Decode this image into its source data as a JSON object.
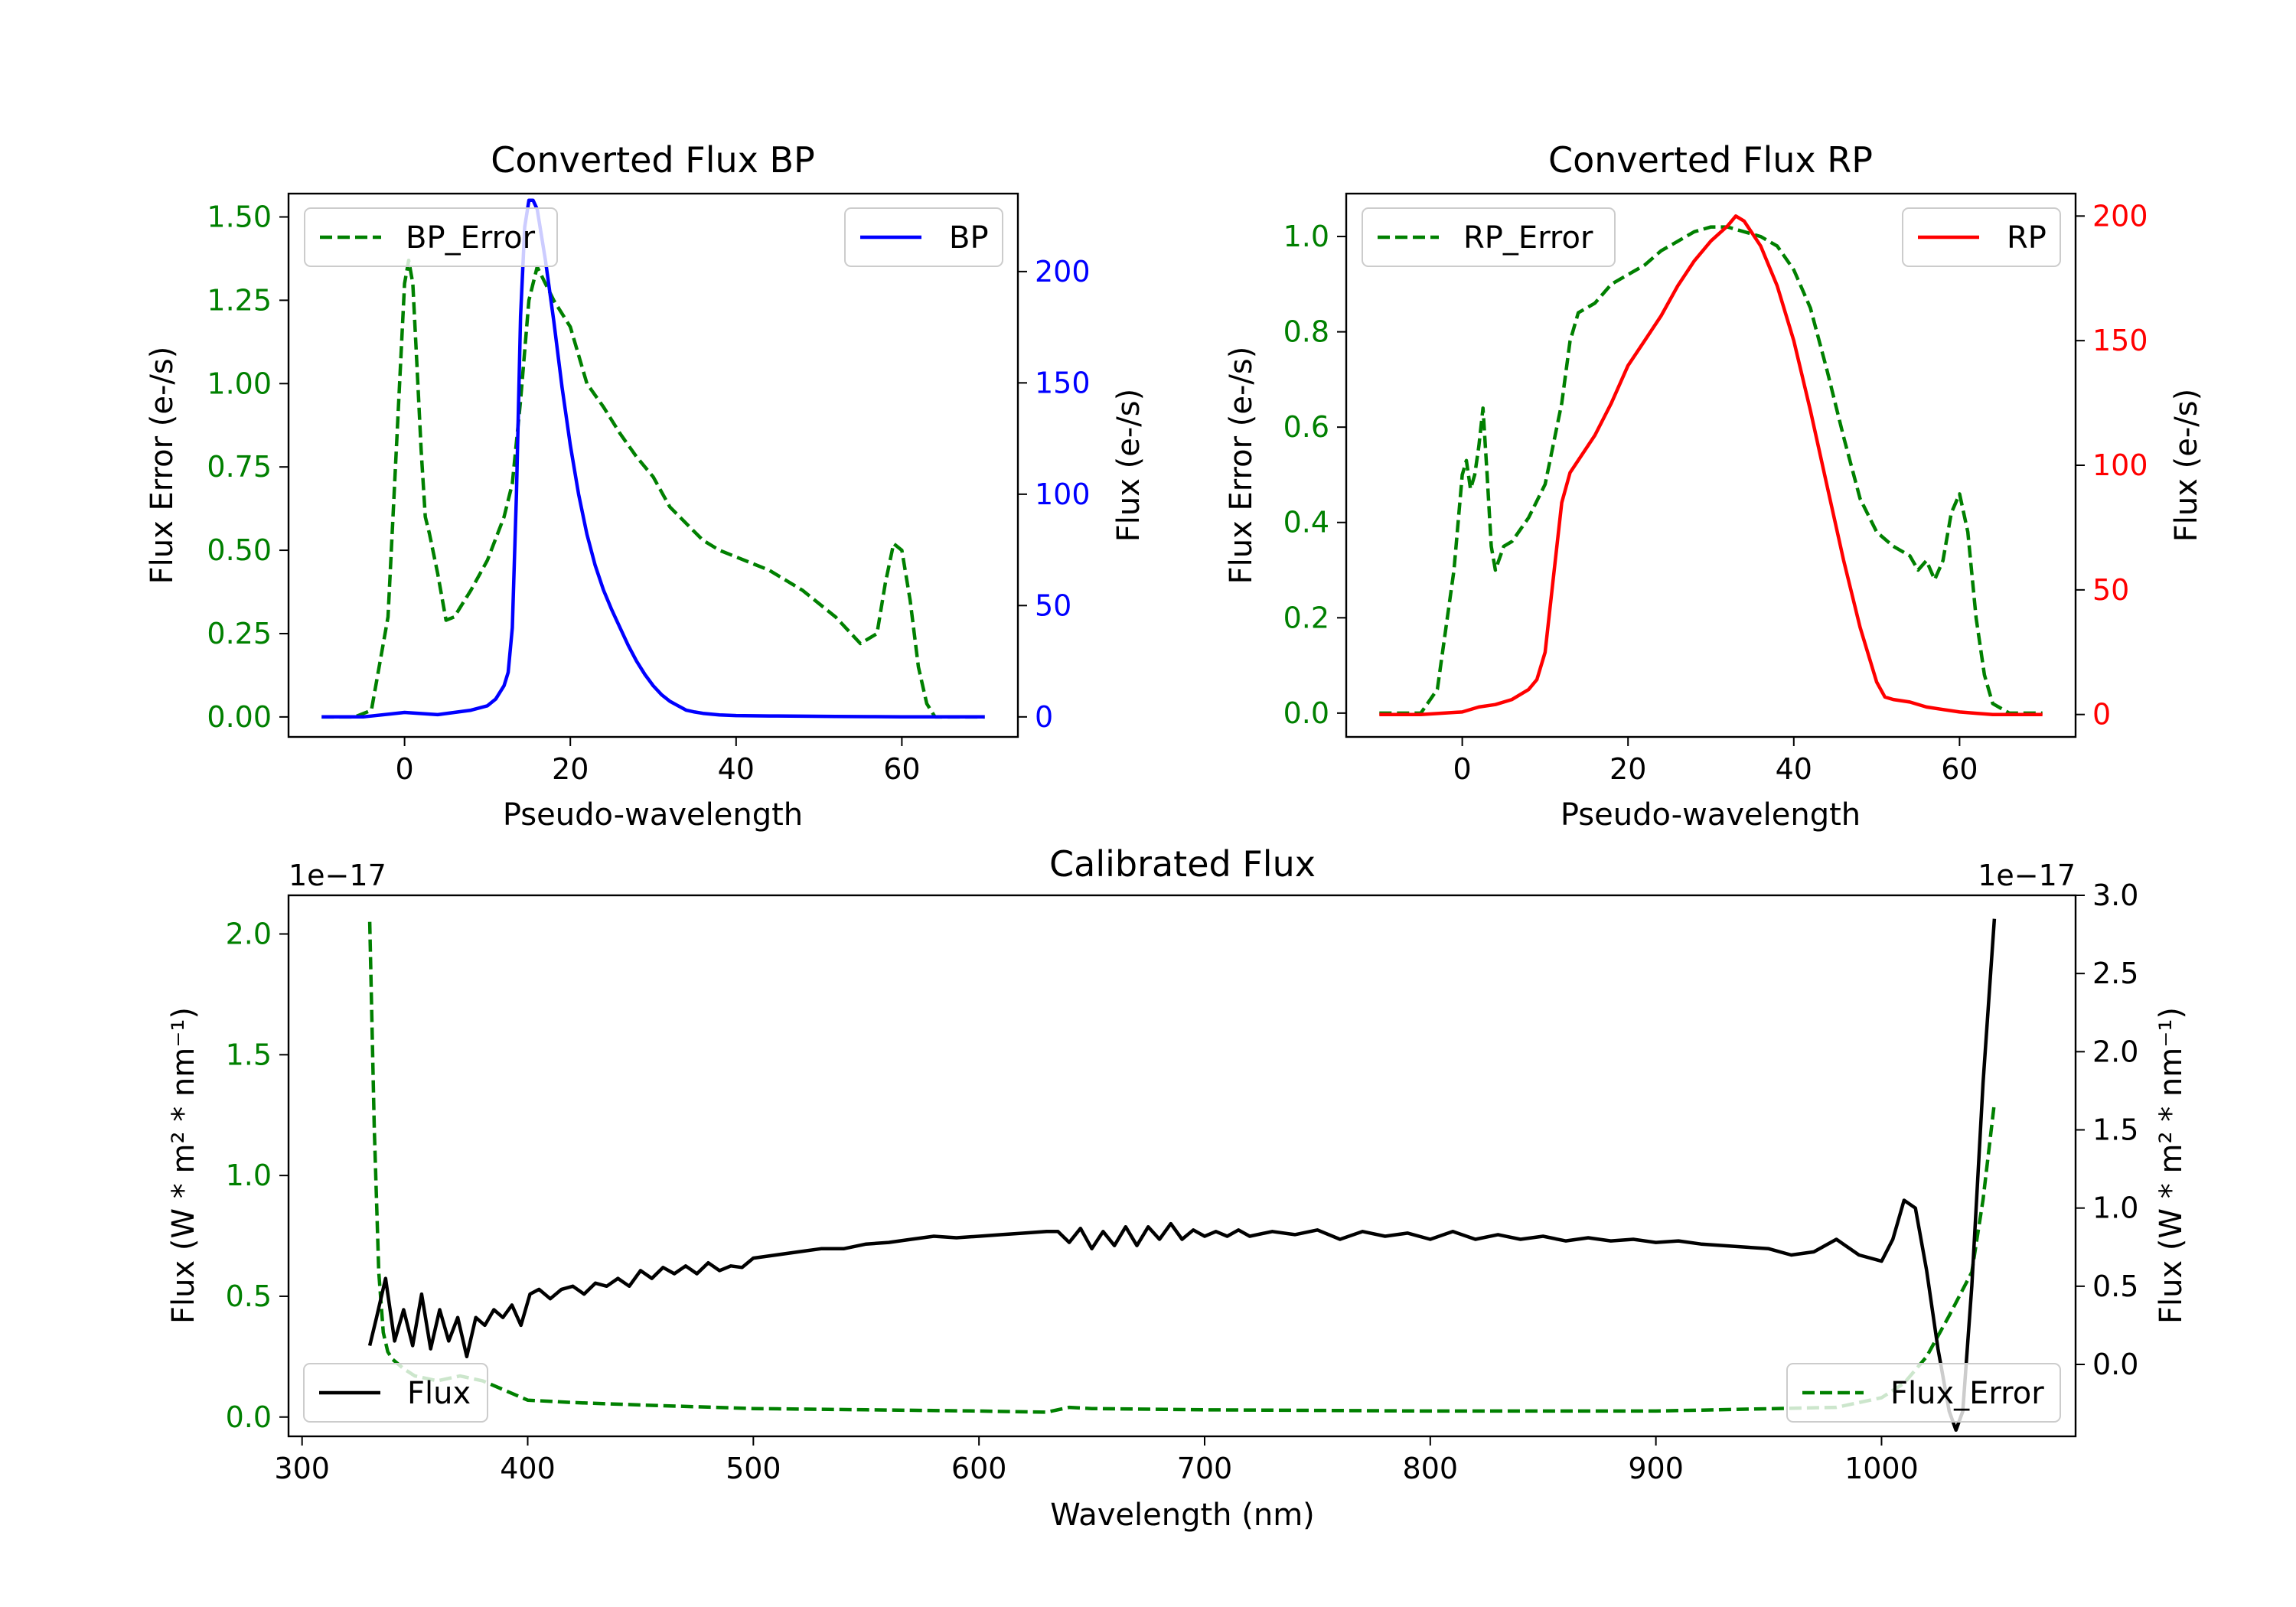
{
  "colors": {
    "error": "#008000",
    "bp": "#0000ff",
    "rp": "#ff0000",
    "flux": "#000000"
  },
  "chart_data": [
    {
      "id": "bp",
      "type": "line",
      "title": "Converted Flux BP",
      "xlabel": "Pseudo-wavelength",
      "ylabel_left": "Flux Error (e-/s)",
      "ylabel_right": "Flux (e-/s)",
      "xlim": [
        -14,
        74
      ],
      "ylim_left": [
        -0.06,
        1.57
      ],
      "ylim_right": [
        -9,
        235
      ],
      "xticks": [
        0,
        20,
        40,
        60
      ],
      "xtick_labels": [
        "0",
        "20",
        "40",
        "60"
      ],
      "yticks_left": [
        0,
        0.25,
        0.5,
        0.75,
        1.0,
        1.25,
        1.5
      ],
      "ytick_labels_left": [
        "0.00",
        "0.25",
        "0.50",
        "0.75",
        "1.00",
        "1.25",
        "1.50"
      ],
      "yticks_right": [
        0,
        50,
        100,
        150,
        200
      ],
      "ytick_labels_right": [
        "0",
        "50",
        "100",
        "150",
        "200"
      ],
      "legend_left": "BP_Error",
      "legend_right": "BP",
      "series": [
        {
          "name": "BP_Error",
          "axis": "left",
          "style": "dashed",
          "x": [
            -10,
            -6,
            -4,
            -2,
            -1,
            0,
            0.5,
            1,
            1.5,
            2,
            2.5,
            3,
            4,
            5,
            6,
            8,
            10,
            12,
            13,
            14,
            15,
            16,
            17,
            18,
            20,
            22,
            24,
            26,
            28,
            30,
            32,
            34,
            36,
            38,
            40,
            44,
            48,
            52,
            55,
            57,
            58,
            59,
            60,
            61,
            62,
            63,
            64,
            66,
            70
          ],
          "y": [
            0.0,
            0.0,
            0.02,
            0.3,
            0.8,
            1.3,
            1.37,
            1.3,
            1.05,
            0.8,
            0.6,
            0.55,
            0.43,
            0.29,
            0.3,
            0.38,
            0.47,
            0.6,
            0.7,
            0.95,
            1.25,
            1.35,
            1.3,
            1.25,
            1.17,
            1.0,
            0.93,
            0.85,
            0.78,
            0.72,
            0.63,
            0.58,
            0.53,
            0.5,
            0.48,
            0.44,
            0.38,
            0.3,
            0.22,
            0.25,
            0.4,
            0.52,
            0.5,
            0.35,
            0.15,
            0.04,
            0.0,
            0.0,
            0.0
          ]
        },
        {
          "name": "BP",
          "axis": "right",
          "style": "solid",
          "x": [
            -10,
            -5,
            0,
            4,
            6,
            8,
            10,
            11,
            12,
            12.5,
            13,
            13.5,
            14,
            14.5,
            15,
            15.5,
            16,
            17,
            18,
            19,
            20,
            21,
            22,
            23,
            24,
            25,
            26,
            27,
            28,
            29,
            30,
            31,
            32,
            33,
            34,
            35,
            36,
            37,
            38,
            40,
            44,
            48,
            52,
            56,
            60,
            64,
            68,
            70
          ],
          "y": [
            0,
            0,
            2,
            1,
            2,
            3,
            5,
            8,
            14,
            20,
            40,
            100,
            180,
            220,
            232,
            232,
            228,
            205,
            178,
            148,
            122,
            100,
            82,
            68,
            57,
            48,
            40,
            32,
            25,
            19,
            14,
            10,
            7,
            5,
            3,
            2.2,
            1.6,
            1.2,
            0.9,
            0.6,
            0.4,
            0.3,
            0.2,
            0.1,
            0,
            0,
            0,
            0
          ]
        }
      ]
    },
    {
      "id": "rp",
      "type": "line",
      "title": "Converted Flux RP",
      "xlabel": "Pseudo-wavelength",
      "ylabel_left": "Flux Error (e-/s)",
      "ylabel_right": "Flux (e-/s)",
      "xlim": [
        -14,
        74
      ],
      "ylim_left": [
        -0.05,
        1.09
      ],
      "ylim_right": [
        -9,
        209
      ],
      "xticks": [
        0,
        20,
        40,
        60
      ],
      "xtick_labels": [
        "0",
        "20",
        "40",
        "60"
      ],
      "yticks_left": [
        0,
        0.2,
        0.4,
        0.6,
        0.8,
        1.0
      ],
      "ytick_labels_left": [
        "0.0",
        "0.2",
        "0.4",
        "0.6",
        "0.8",
        "1.0"
      ],
      "yticks_right": [
        0,
        50,
        100,
        150,
        200
      ],
      "ytick_labels_right": [
        "0",
        "50",
        "100",
        "150",
        "200"
      ],
      "legend_left": "RP_Error",
      "legend_right": "RP",
      "series": [
        {
          "name": "RP_Error",
          "axis": "left",
          "style": "dashed",
          "x": [
            -10,
            -5,
            -3,
            -1,
            0,
            0.5,
            1,
            1.5,
            2,
            2.5,
            3,
            3.5,
            4,
            5,
            6,
            8,
            10,
            12,
            13,
            14,
            16,
            18,
            20,
            22,
            24,
            26,
            28,
            30,
            32,
            34,
            36,
            38,
            40,
            42,
            44,
            46,
            48,
            50,
            52,
            54,
            55,
            56,
            57,
            58,
            59,
            60,
            61,
            62,
            63,
            64,
            66,
            70
          ],
          "y": [
            0.0,
            0.0,
            0.05,
            0.3,
            0.5,
            0.53,
            0.47,
            0.5,
            0.56,
            0.64,
            0.5,
            0.35,
            0.3,
            0.35,
            0.36,
            0.41,
            0.48,
            0.65,
            0.78,
            0.84,
            0.86,
            0.9,
            0.92,
            0.94,
            0.97,
            0.99,
            1.01,
            1.02,
            1.02,
            1.01,
            1.0,
            0.98,
            0.93,
            0.85,
            0.72,
            0.58,
            0.45,
            0.38,
            0.35,
            0.33,
            0.3,
            0.32,
            0.28,
            0.32,
            0.42,
            0.46,
            0.38,
            0.2,
            0.08,
            0.02,
            0.0,
            0.0
          ]
        },
        {
          "name": "RP",
          "axis": "right",
          "style": "solid",
          "x": [
            -10,
            -5,
            0,
            2,
            4,
            6,
            8,
            9,
            10,
            11,
            12,
            13,
            14,
            16,
            18,
            20,
            22,
            24,
            26,
            28,
            30,
            32,
            33,
            34,
            36,
            38,
            40,
            42,
            44,
            46,
            48,
            50,
            51,
            52,
            54,
            56,
            58,
            60,
            62,
            64,
            66,
            70
          ],
          "y": [
            0,
            0,
            1,
            3,
            4,
            6,
            10,
            14,
            25,
            55,
            85,
            97,
            102,
            112,
            125,
            140,
            150,
            160,
            172,
            182,
            190,
            196,
            200,
            198,
            188,
            172,
            150,
            122,
            92,
            62,
            35,
            13,
            7,
            6,
            5,
            3,
            2,
            1,
            0.5,
            0,
            0,
            0
          ]
        }
      ]
    },
    {
      "id": "cal",
      "type": "line",
      "title": "Calibrated Flux",
      "xlabel": "Wavelength (nm)",
      "ylabel_left": "Flux (W * m² * nm⁻¹)",
      "ylabel_right": "Flux (W * m² * nm⁻¹)",
      "offset_left": "1e−17",
      "offset_right": "1e−17",
      "xlim": [
        294,
        1086
      ],
      "ylim_left": [
        -0.08,
        2.16
      ],
      "ylim_right": [
        -0.46,
        3.0
      ],
      "xticks": [
        300,
        400,
        500,
        600,
        700,
        800,
        900,
        1000
      ],
      "xtick_labels": [
        "300",
        "400",
        "500",
        "600",
        "700",
        "800",
        "900",
        "1000"
      ],
      "yticks_left": [
        0.0,
        0.5,
        1.0,
        1.5,
        2.0
      ],
      "ytick_labels_left": [
        "0.0",
        "0.5",
        "1.0",
        "1.5",
        "2.0"
      ],
      "yticks_right": [
        0.0,
        0.5,
        1.0,
        1.5,
        2.0,
        2.5,
        3.0
      ],
      "ytick_labels_right": [
        "0.0",
        "0.5",
        "1.0",
        "1.5",
        "2.0",
        "2.5",
        "3.0"
      ],
      "legend_left": "Flux",
      "legend_right": "Flux_Error",
      "series": [
        {
          "name": "Flux_Error",
          "axis": "left",
          "style": "dashed",
          "x": [
            330,
            332,
            334,
            336,
            338,
            340,
            345,
            350,
            360,
            370,
            380,
            390,
            400,
            420,
            450,
            500,
            550,
            600,
            630,
            640,
            650,
            700,
            800,
            900,
            980,
            1000,
            1010,
            1020,
            1030,
            1040,
            1045,
            1050
          ],
          "y": [
            2.05,
            1.2,
            0.6,
            0.35,
            0.27,
            0.24,
            0.2,
            0.17,
            0.15,
            0.17,
            0.15,
            0.11,
            0.07,
            0.06,
            0.05,
            0.035,
            0.03,
            0.025,
            0.02,
            0.04,
            0.035,
            0.03,
            0.025,
            0.025,
            0.04,
            0.08,
            0.14,
            0.25,
            0.42,
            0.6,
            0.9,
            1.3
          ]
        },
        {
          "name": "Flux",
          "axis": "right",
          "style": "solid",
          "x": [
            330,
            333,
            337,
            341,
            345,
            349,
            353,
            357,
            361,
            365,
            369,
            373,
            377,
            381,
            385,
            389,
            393,
            397,
            401,
            405,
            410,
            415,
            420,
            425,
            430,
            435,
            440,
            445,
            450,
            455,
            460,
            465,
            470,
            475,
            480,
            485,
            490,
            495,
            500,
            510,
            520,
            530,
            540,
            550,
            560,
            570,
            580,
            590,
            600,
            610,
            620,
            630,
            635,
            640,
            645,
            650,
            655,
            660,
            665,
            670,
            675,
            680,
            685,
            690,
            695,
            700,
            705,
            710,
            715,
            720,
            730,
            740,
            750,
            760,
            770,
            780,
            790,
            800,
            810,
            820,
            830,
            840,
            850,
            860,
            870,
            880,
            890,
            900,
            910,
            920,
            930,
            940,
            950,
            960,
            970,
            980,
            990,
            1000,
            1005,
            1010,
            1015,
            1020,
            1025,
            1030,
            1033,
            1036,
            1040,
            1045,
            1050
          ],
          "y": [
            0.12,
            0.3,
            0.55,
            0.15,
            0.35,
            0.12,
            0.45,
            0.1,
            0.35,
            0.15,
            0.3,
            0.05,
            0.3,
            0.25,
            0.35,
            0.3,
            0.38,
            0.25,
            0.45,
            0.48,
            0.42,
            0.48,
            0.5,
            0.45,
            0.52,
            0.5,
            0.55,
            0.5,
            0.6,
            0.55,
            0.62,
            0.58,
            0.63,
            0.58,
            0.65,
            0.6,
            0.63,
            0.62,
            0.68,
            0.7,
            0.72,
            0.74,
            0.74,
            0.77,
            0.78,
            0.8,
            0.82,
            0.81,
            0.82,
            0.83,
            0.84,
            0.85,
            0.85,
            0.78,
            0.87,
            0.74,
            0.85,
            0.76,
            0.88,
            0.76,
            0.88,
            0.8,
            0.9,
            0.8,
            0.86,
            0.82,
            0.85,
            0.82,
            0.86,
            0.82,
            0.85,
            0.83,
            0.86,
            0.8,
            0.85,
            0.82,
            0.84,
            0.8,
            0.85,
            0.8,
            0.83,
            0.8,
            0.82,
            0.79,
            0.81,
            0.79,
            0.8,
            0.78,
            0.79,
            0.77,
            0.76,
            0.75,
            0.74,
            0.7,
            0.72,
            0.8,
            0.7,
            0.66,
            0.8,
            1.05,
            1.0,
            0.6,
            0.1,
            -0.3,
            -0.42,
            -0.3,
            0.5,
            1.8,
            2.85
          ]
        }
      ]
    }
  ]
}
